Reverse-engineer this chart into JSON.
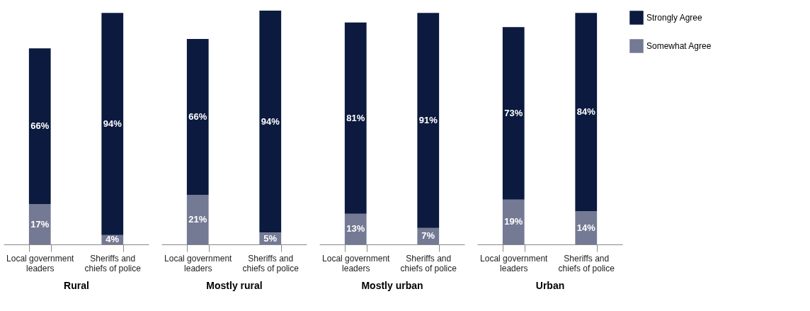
{
  "chart_data": [
    {
      "type": "bar",
      "stacked": true,
      "xlabel": "Rural",
      "categories": [
        "Local government leaders",
        "Sheriffs and chiefs of police"
      ],
      "series": [
        {
          "color": "#747a94",
          "values": [
            17,
            4
          ],
          "value_labels": [
            "17%",
            "4%"
          ]
        },
        {
          "color": "#0b1a3e",
          "values": [
            66,
            94
          ],
          "value_labels": [
            "66%",
            "94%"
          ]
        }
      ]
    },
    {
      "type": "bar",
      "stacked": true,
      "xlabel": "Mostly rural",
      "categories": [
        "Local government leaders",
        "Sheriffs and chiefs of police"
      ],
      "series": [
        {
          "color": "#747a94",
          "values": [
            21,
            5
          ],
          "value_labels": [
            "21%",
            "5%"
          ]
        },
        {
          "color": "#0b1a3e",
          "values": [
            66,
            94
          ],
          "value_labels": [
            "66%",
            "94%"
          ]
        }
      ]
    },
    {
      "type": "bar",
      "stacked": true,
      "xlabel": "Mostly urban",
      "categories": [
        "Local government leaders",
        "Sheriffs and chiefs of police"
      ],
      "series": [
        {
          "color": "#747a94",
          "values": [
            13,
            7
          ],
          "value_labels": [
            "13%",
            "7%"
          ]
        },
        {
          "color": "#0b1a3e",
          "values": [
            81,
            91
          ],
          "value_labels": [
            "81%",
            "91%"
          ]
        }
      ]
    },
    {
      "type": "bar",
      "stacked": true,
      "xlabel": "Urban",
      "legend": "right",
      "categories": [
        "Local government leaders",
        "Sheriffs and chiefs of police"
      ],
      "series": [
        {
          "name": "Somewhat Agree",
          "color": "#747a94",
          "values": [
            19,
            14
          ],
          "value_labels": [
            "19%",
            "14%"
          ]
        },
        {
          "name": "Strongly Agree",
          "color": "#0b1a3e",
          "values": [
            73,
            84
          ],
          "value_labels": [
            "73%",
            "84%"
          ]
        }
      ]
    }
  ]
}
